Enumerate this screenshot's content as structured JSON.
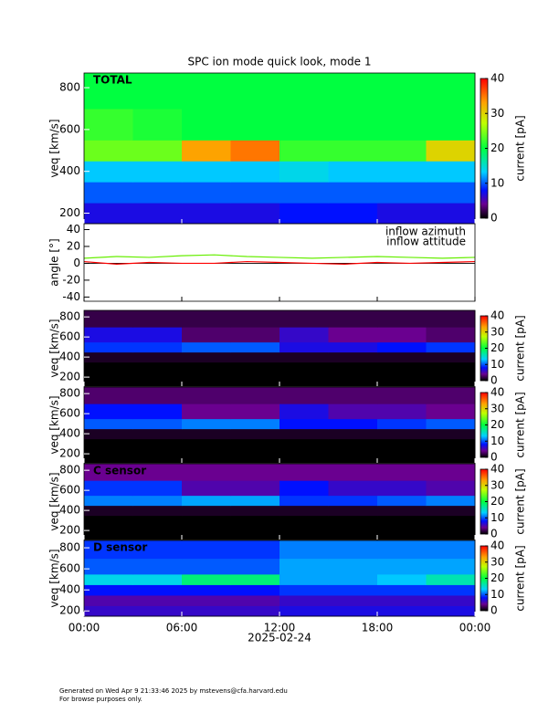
{
  "chart_data": [
    {
      "type": "heatmap",
      "title": "SPC ion mode quick look, mode 1",
      "label": "TOTAL",
      "ylabel": "veq [km/s]",
      "xlim": [
        0,
        24
      ],
      "ylim": [
        150,
        870
      ],
      "yticks": [
        200,
        400,
        600,
        800
      ],
      "x_bins": [
        0,
        3,
        6,
        9,
        12,
        15,
        18,
        21,
        24
      ],
      "y_bins": [
        150,
        250,
        350,
        450,
        550,
        700,
        870
      ],
      "z": [
        [
          7,
          7,
          7,
          7,
          8,
          8,
          7,
          7
        ],
        [
          10,
          10,
          10,
          10,
          10,
          10,
          10,
          10
        ],
        [
          13,
          13,
          13,
          13,
          14,
          13,
          13,
          13
        ],
        [
          24,
          24,
          33,
          35,
          22,
          22,
          22,
          30
        ],
        [
          22,
          21,
          20,
          20,
          20,
          20,
          20,
          20
        ],
        [
          20,
          20,
          20,
          20,
          20,
          20,
          20,
          20
        ]
      ],
      "zlim": [
        0,
        40
      ],
      "zticks": [
        0,
        10,
        20,
        30,
        40
      ],
      "zlabel": "current [pA]"
    },
    {
      "type": "line",
      "ylabel": "angle [°]",
      "xlim": [
        0,
        24
      ],
      "ylim": [
        -45,
        47
      ],
      "yticks": [
        -40,
        -20,
        0,
        20,
        40
      ],
      "x": [
        0,
        2,
        4,
        6,
        8,
        10,
        12,
        14,
        16,
        18,
        20,
        22,
        24
      ],
      "series": [
        {
          "name": "inflow azimuth",
          "color": "#ff0000",
          "values": [
            2,
            -1,
            1,
            0,
            0,
            2,
            1,
            0,
            -1,
            1,
            0,
            1,
            2
          ]
        },
        {
          "name": "inflow attitude",
          "color": "#66ee00",
          "values": [
            6,
            8,
            7,
            9,
            10,
            8,
            7,
            6,
            7,
            8,
            7,
            6,
            7
          ]
        }
      ]
    },
    {
      "type": "heatmap",
      "ylabel": "veq [km/s]",
      "xlim": [
        0,
        24
      ],
      "ylim": [
        110,
        865
      ],
      "yticks": [
        200,
        400,
        600,
        800
      ],
      "x_bins": [
        0,
        3,
        6,
        9,
        12,
        15,
        18,
        21,
        24
      ],
      "y_bins": [
        110,
        250,
        350,
        450,
        550,
        700,
        865
      ],
      "z": [
        [
          0,
          0,
          0,
          0,
          0,
          0,
          0,
          0
        ],
        [
          0,
          0,
          0,
          0,
          0,
          0,
          0,
          0
        ],
        [
          1,
          1,
          1,
          1,
          1,
          1,
          1,
          1
        ],
        [
          9,
          9,
          10,
          10,
          7,
          7,
          8,
          9
        ],
        [
          7,
          7,
          3,
          3,
          6,
          4,
          4,
          3
        ],
        [
          2,
          2,
          2,
          2,
          2,
          2,
          2,
          2
        ]
      ],
      "zlim": [
        0,
        40
      ],
      "zticks": [
        0,
        10,
        20,
        30,
        40
      ],
      "zlabel": "current [pA]"
    },
    {
      "type": "heatmap",
      "ylabel": "veq [km/s]",
      "xlim": [
        0,
        24
      ],
      "ylim": [
        110,
        865
      ],
      "yticks": [
        200,
        400,
        600,
        800
      ],
      "x_bins": [
        0,
        3,
        6,
        9,
        12,
        15,
        18,
        21,
        24
      ],
      "y_bins": [
        110,
        250,
        350,
        450,
        550,
        700,
        865
      ],
      "z": [
        [
          0,
          0,
          0,
          0,
          0,
          0,
          0,
          0
        ],
        [
          0,
          0,
          0,
          0,
          0,
          0,
          0,
          0
        ],
        [
          1,
          1,
          1,
          1,
          1,
          1,
          1,
          1
        ],
        [
          10,
          10,
          11,
          11,
          8,
          8,
          9,
          10
        ],
        [
          8,
          8,
          4,
          4,
          7,
          5,
          5,
          4
        ],
        [
          3,
          3,
          3,
          3,
          3,
          3,
          3,
          3
        ]
      ],
      "zlim": [
        0,
        40
      ],
      "zticks": [
        0,
        10,
        20,
        30,
        40
      ],
      "zlabel": "current [pA]"
    },
    {
      "type": "heatmap",
      "label": "C sensor",
      "ylabel": "veq [km/s]",
      "xlim": [
        0,
        24
      ],
      "ylim": [
        110,
        865
      ],
      "yticks": [
        200,
        400,
        600,
        800
      ],
      "x_bins": [
        0,
        3,
        6,
        9,
        12,
        15,
        18,
        21,
        24
      ],
      "y_bins": [
        110,
        250,
        350,
        450,
        550,
        700,
        865
      ],
      "z": [
        [
          0,
          0,
          0,
          0,
          0,
          0,
          0,
          0
        ],
        [
          0,
          0,
          0,
          0,
          0,
          0,
          0,
          0
        ],
        [
          1,
          1,
          1,
          1,
          1,
          1,
          1,
          1
        ],
        [
          11,
          11,
          12,
          12,
          9,
          9,
          10,
          11
        ],
        [
          9,
          9,
          5,
          5,
          8,
          6,
          6,
          5
        ],
        [
          4,
          4,
          4,
          4,
          4,
          4,
          4,
          4
        ]
      ],
      "zlim": [
        0,
        40
      ],
      "zticks": [
        0,
        10,
        20,
        30,
        40
      ],
      "zlabel": "current [pA]"
    },
    {
      "type": "heatmap",
      "label": "D sensor",
      "ylabel": "veq [km/s]",
      "xlim": [
        0,
        24
      ],
      "ylim": [
        150,
        870
      ],
      "yticks": [
        200,
        400,
        600,
        800
      ],
      "x_bins": [
        0,
        3,
        6,
        9,
        12,
        15,
        18,
        21,
        24
      ],
      "y_bins": [
        150,
        250,
        350,
        450,
        550,
        700,
        870
      ],
      "z": [
        [
          6,
          6,
          6,
          6,
          7,
          7,
          7,
          7
        ],
        [
          5,
          5,
          5,
          5,
          6,
          6,
          6,
          6
        ],
        [
          8,
          8,
          8,
          8,
          9,
          9,
          9,
          9
        ],
        [
          14,
          14,
          18,
          18,
          12,
          12,
          13,
          16
        ],
        [
          10,
          10,
          10,
          10,
          12,
          12,
          12,
          12
        ],
        [
          9,
          9,
          9,
          9,
          11,
          11,
          11,
          11
        ]
      ],
      "zlim": [
        0,
        40
      ],
      "zticks": [
        0,
        10,
        20,
        30,
        40
      ],
      "zlabel": "current [pA]",
      "xticks": [
        {
          "value": 0,
          "label": "00:00"
        },
        {
          "value": 6,
          "label": "06:00"
        },
        {
          "value": 12,
          "label": "12:00"
        },
        {
          "value": 18,
          "label": "18:00"
        },
        {
          "value": 24,
          "label": "00:00"
        }
      ],
      "xlabel": "2025-02-24"
    }
  ],
  "footer": [
    "Generated on Wed Apr  9 21:33:46 2025 by mstevens@cfa.harvard.edu",
    "For browse purposes only."
  ]
}
